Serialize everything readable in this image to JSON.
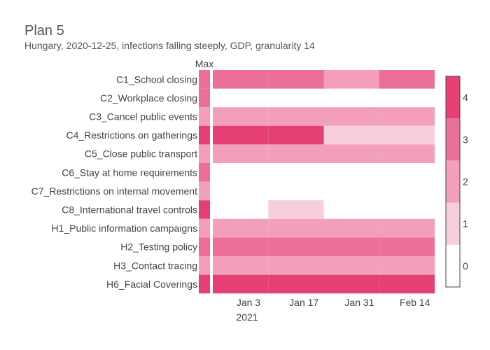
{
  "chart_data": {
    "type": "heatmap",
    "title": "Plan 5",
    "subtitle": "Hungary, 2020-12-25, infections falling steeply, GDP, granularity 14",
    "max_column_label": "Max",
    "rows": [
      "C1_School closing",
      "C2_Workplace closing",
      "C3_Cancel public events",
      "C4_Restrictions on gatherings",
      "C5_Close public transport",
      "C6_Stay at home requirements",
      "C7_Restrictions on internal movement",
      "C8_International travel controls",
      "H1_Public information campaigns",
      "H2_Testing policy",
      "H3_Contact tracing",
      "H6_Facial Coverings"
    ],
    "max_values": [
      3,
      3,
      2,
      4,
      2,
      3,
      2,
      4,
      2,
      3,
      2,
      4
    ],
    "periods": [
      "2020-12-25",
      "2021-01-08",
      "2021-01-22",
      "2021-02-05"
    ],
    "period_end": "2021-02-19",
    "plan_values": [
      [
        3,
        3,
        2,
        3
      ],
      [
        null,
        null,
        null,
        null
      ],
      [
        2,
        2,
        2,
        2
      ],
      [
        4,
        4,
        1,
        1
      ],
      [
        2,
        2,
        2,
        2
      ],
      [
        null,
        null,
        null,
        null
      ],
      [
        null,
        null,
        null,
        null
      ],
      [
        null,
        1,
        null,
        null
      ],
      [
        2,
        2,
        2,
        2
      ],
      [
        3,
        3,
        3,
        3
      ],
      [
        2,
        2,
        2,
        2
      ],
      [
        4,
        4,
        4,
        4
      ]
    ],
    "x_ticks": [
      {
        "date": "2021-01-03",
        "label": "Jan 3"
      },
      {
        "date": "2021-01-17",
        "label": "Jan 17"
      },
      {
        "date": "2021-01-31",
        "label": "Jan 31"
      },
      {
        "date": "2021-02-14",
        "label": "Feb 14"
      }
    ],
    "x_year_label": "2021",
    "colorscale": {
      "levels": [
        0,
        1,
        2,
        3,
        4
      ],
      "colors": [
        "#ffffff",
        "#f7cfdc",
        "#f39fbb",
        "#ec6f97",
        "#e63f74"
      ],
      "tick_labels": [
        "0",
        "1",
        "2",
        "3",
        "4"
      ]
    }
  }
}
